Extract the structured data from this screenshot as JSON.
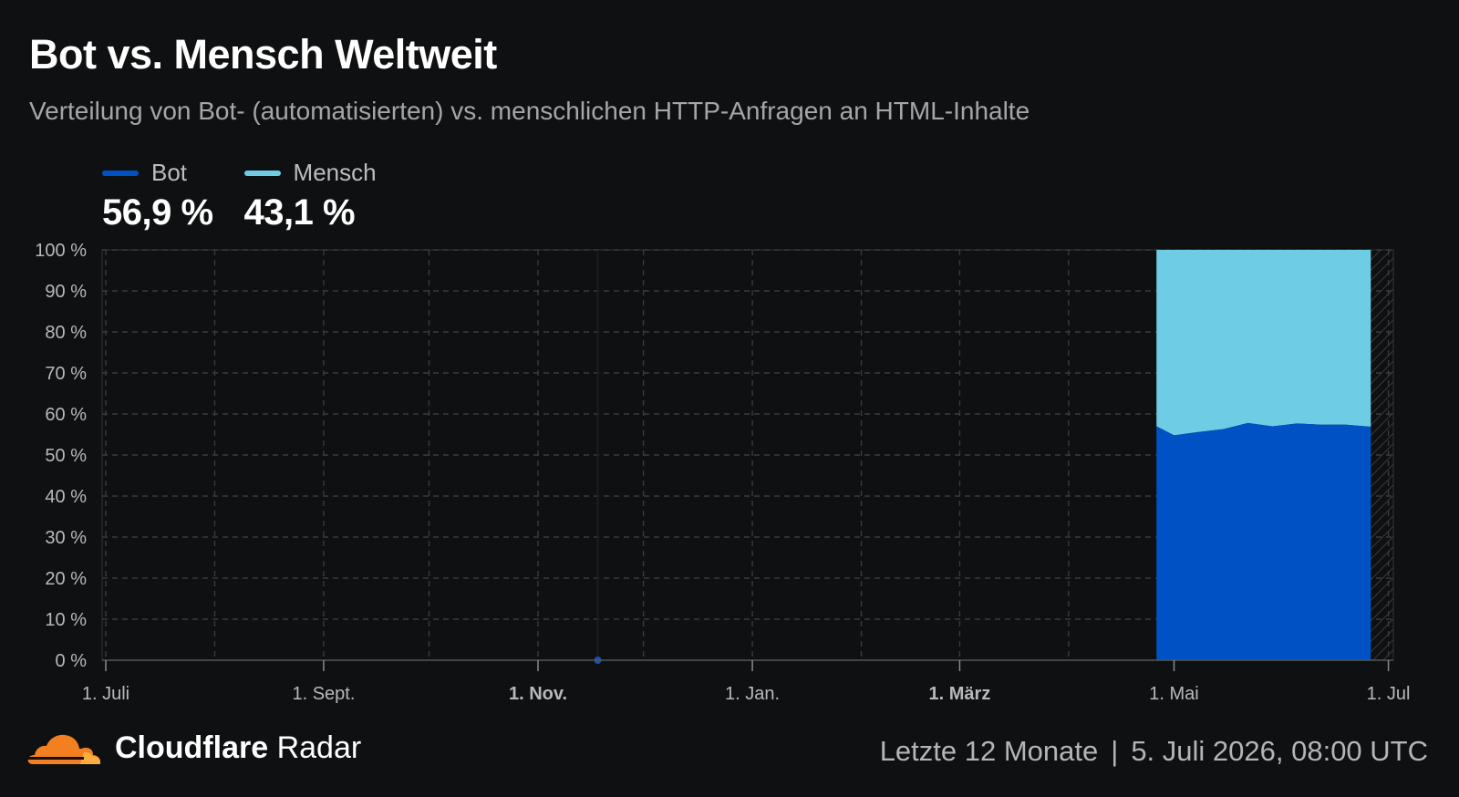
{
  "header": {
    "title": "Bot vs. Mensch Weltweit",
    "subtitle": "Verteilung von Bot- (automatisierten) vs. menschlichen HTTP-Anfragen an HTML-Inhalte"
  },
  "legend": [
    {
      "name": "Bot",
      "value": "56,9 %",
      "color": "#0051c3"
    },
    {
      "name": "Mensch",
      "value": "43,1 %",
      "color": "#6ecce5"
    }
  ],
  "chart_data": {
    "type": "area",
    "stacked": true,
    "y_ticks": [
      "0 %",
      "10 %",
      "20 %",
      "30 %",
      "40 %",
      "50 %",
      "60 %",
      "70 %",
      "80 %",
      "90 %",
      "100 %"
    ],
    "ylim": [
      0,
      100
    ],
    "x_ticks": [
      {
        "label": "1. Juli",
        "date": "2025-07-01",
        "bold": false
      },
      {
        "label": "1. Sept.",
        "date": "2025-09-01",
        "bold": false
      },
      {
        "label": "1. Nov.",
        "date": "2025-11-01",
        "bold": true
      },
      {
        "label": "1. Jan.",
        "date": "2026-01-01",
        "bold": false
      },
      {
        "label": "1. März",
        "date": "2026-03-01",
        "bold": true
      },
      {
        "label": "1. Mai",
        "date": "2026-05-01",
        "bold": false
      },
      {
        "label": "1. Jul",
        "date": "2026-07-01",
        "bold": false
      }
    ],
    "x_range": [
      "2025-07-01",
      "2026-07-05"
    ],
    "series": [
      {
        "name": "Bot",
        "color": "#0051c3",
        "points": [
          [
            "2026-04-26",
            57.0
          ],
          [
            "2026-05-01",
            54.8
          ],
          [
            "2026-05-08",
            55.6
          ],
          [
            "2026-05-15",
            56.3
          ],
          [
            "2026-05-22",
            57.8
          ],
          [
            "2026-05-29",
            57.0
          ],
          [
            "2026-06-05",
            57.7
          ],
          [
            "2026-06-12",
            57.4
          ],
          [
            "2026-06-19",
            57.4
          ],
          [
            "2026-06-26",
            56.9
          ]
        ]
      },
      {
        "name": "Mensch",
        "color": "#6ecce5",
        "points": [
          [
            "2026-04-26",
            43.0
          ],
          [
            "2026-05-01",
            45.2
          ],
          [
            "2026-05-08",
            44.4
          ],
          [
            "2026-05-15",
            43.7
          ],
          [
            "2026-05-22",
            42.2
          ],
          [
            "2026-05-29",
            43.0
          ],
          [
            "2026-06-05",
            42.3
          ],
          [
            "2026-06-12",
            42.6
          ],
          [
            "2026-06-19",
            42.6
          ],
          [
            "2026-06-26",
            43.1
          ]
        ]
      }
    ],
    "event_marker_date": "2025-11-18",
    "grid": true
  },
  "footer": {
    "brand_bold": "Cloudflare",
    "brand_rest": "Radar",
    "range_label": "Letzte 12 Monate",
    "separator": "|",
    "timestamp": "5. Juli 2026, 08:00 UTC"
  }
}
